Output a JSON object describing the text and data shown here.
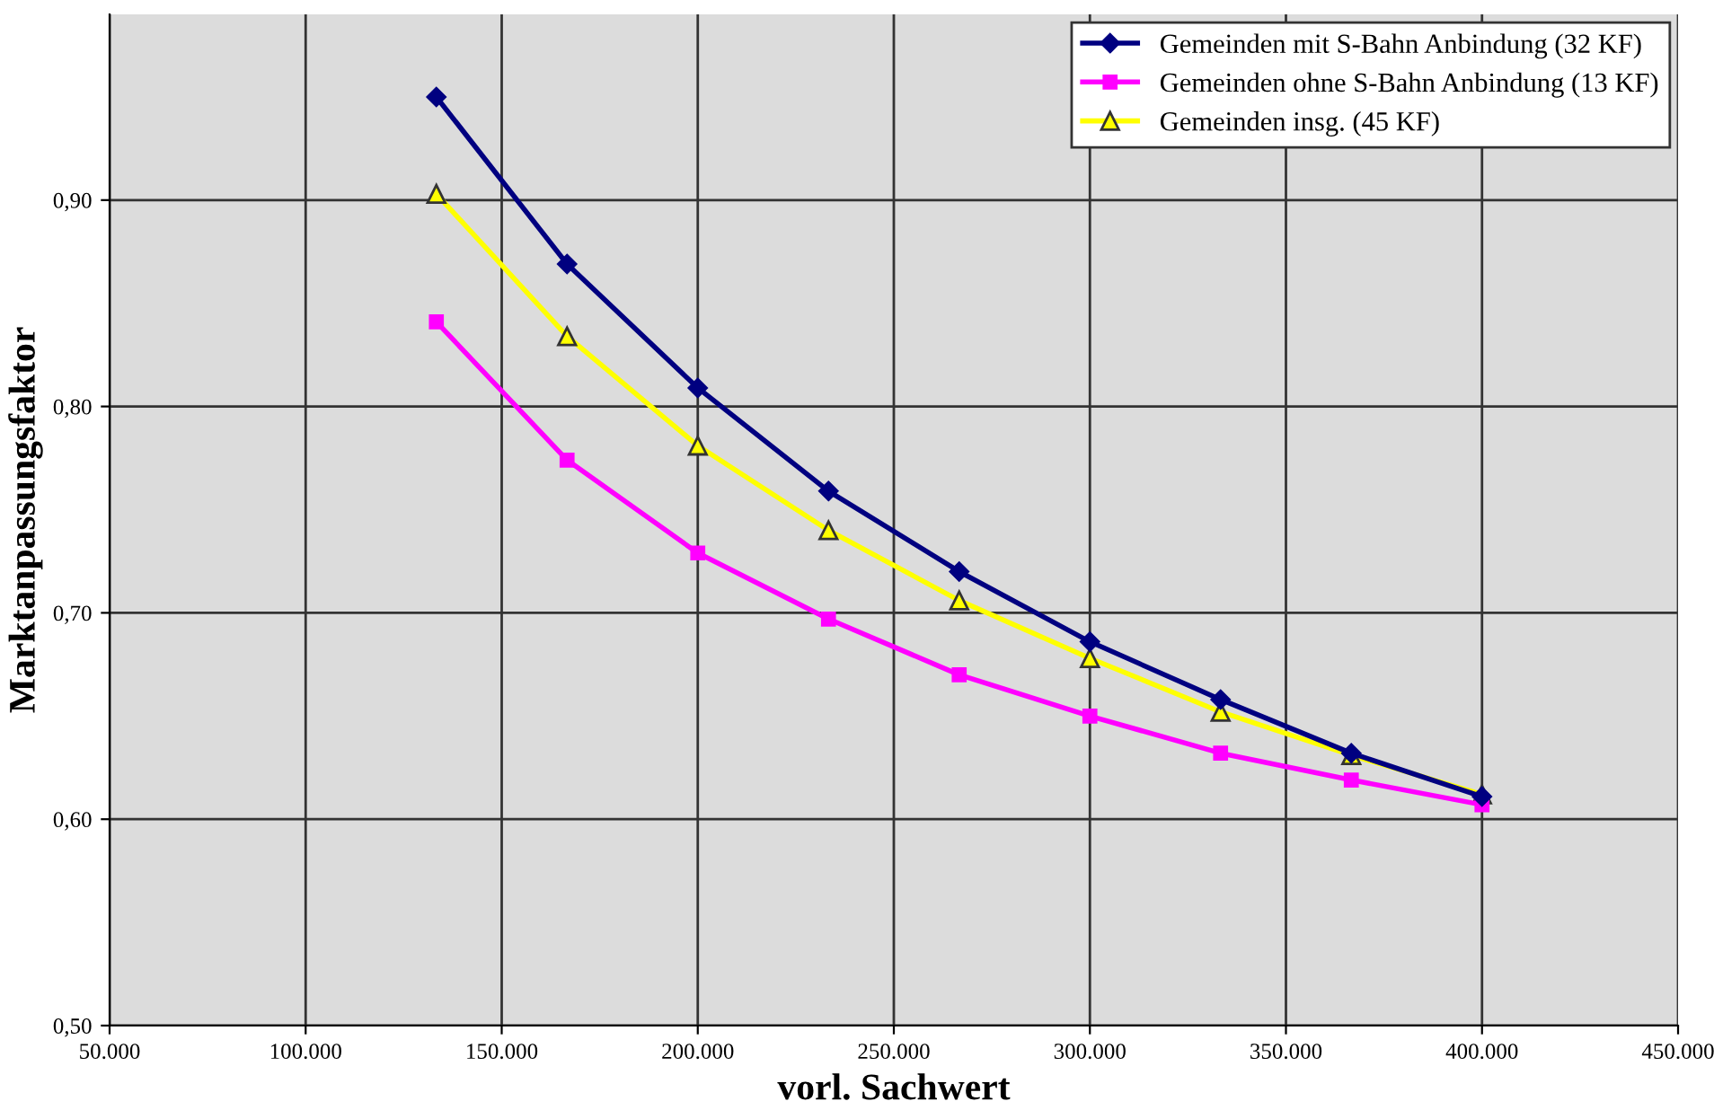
{
  "chart_data": {
    "type": "line",
    "xlabel": "vorl. Sachwert",
    "ylabel": "Marktanpassungsfaktor",
    "x": [
      133333,
      166667,
      200000,
      233333,
      266667,
      300000,
      333333,
      366667,
      400000
    ],
    "series": [
      {
        "name": "Gemeinden mit S-Bahn Anbindung (32 KF)",
        "color": "#000080",
        "marker": "diamond",
        "values": [
          0.95,
          0.869,
          0.809,
          0.759,
          0.72,
          0.686,
          0.658,
          0.632,
          0.611
        ]
      },
      {
        "name": "Gemeinden ohne S-Bahn Anbindung (13 KF)",
        "color": "#ff00ff",
        "marker": "square",
        "values": [
          0.841,
          0.774,
          0.729,
          0.697,
          0.67,
          0.65,
          0.632,
          0.619,
          0.607
        ]
      },
      {
        "name": "Gemeinden insg. (45 KF)",
        "color": "#ffff00",
        "marker": "triangle",
        "values": [
          0.903,
          0.834,
          0.781,
          0.74,
          0.706,
          0.678,
          0.652,
          0.631,
          0.612
        ]
      }
    ],
    "xlim": [
      50000,
      450000
    ],
    "xticks": [
      {
        "value": 50000,
        "label": "50.000"
      },
      {
        "value": 100000,
        "label": "100.000"
      },
      {
        "value": 150000,
        "label": "150.000"
      },
      {
        "value": 200000,
        "label": "200.000"
      },
      {
        "value": 250000,
        "label": "250.000"
      },
      {
        "value": 300000,
        "label": "300.000"
      },
      {
        "value": 350000,
        "label": "350.000"
      },
      {
        "value": 400000,
        "label": "400.000"
      },
      {
        "value": 450000,
        "label": "450.000"
      }
    ],
    "ylim": [
      0.5,
      0.99
    ],
    "yticks": [
      {
        "value": 0.5,
        "label": "0,50"
      },
      {
        "value": 0.6,
        "label": "0,60"
      },
      {
        "value": 0.7,
        "label": "0,70"
      },
      {
        "value": 0.8,
        "label": "0,80"
      },
      {
        "value": 0.9,
        "label": "0,90"
      }
    ],
    "grid": true,
    "legend": "top right",
    "line_style": "solid"
  }
}
